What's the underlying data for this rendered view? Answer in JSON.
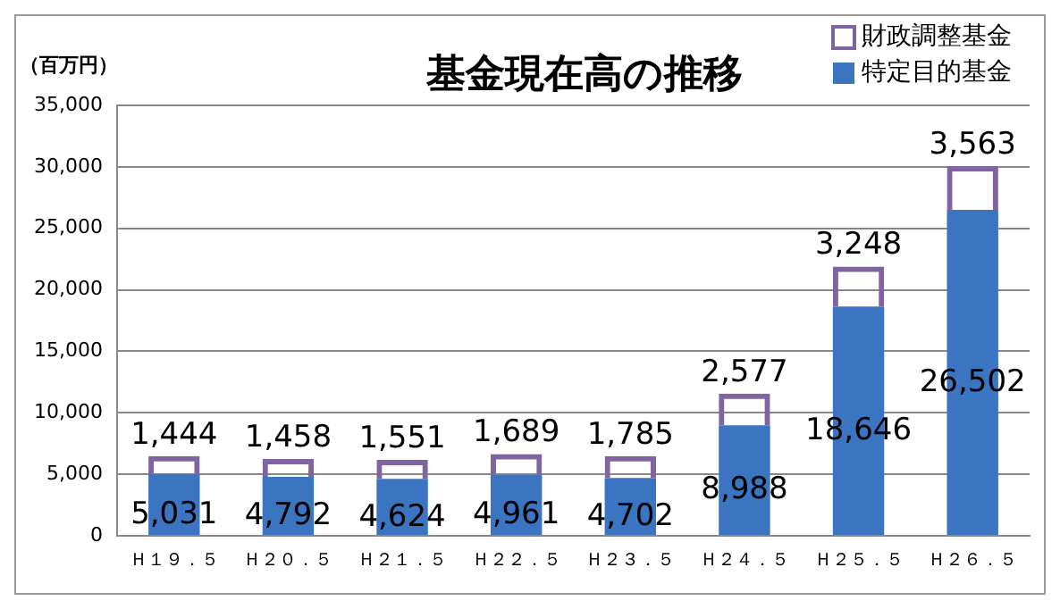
{
  "chart_data": {
    "type": "bar",
    "title": "基金現在高の推移",
    "ylabel": "（百万円）",
    "categories": [
      "Ｈ１９．５",
      "Ｈ２０．５",
      "Ｈ２１．５",
      "Ｈ２２．５",
      "Ｈ２３．５",
      "Ｈ２４．５",
      "Ｈ２５．５",
      "Ｈ２６．５"
    ],
    "series": [
      {
        "name": "特定目的基金",
        "color": "#3b74c0",
        "values": [
          5031,
          4792,
          4624,
          4961,
          4702,
          8988,
          18646,
          26502
        ],
        "value_labels": [
          "5,031",
          "4,792",
          "4,624",
          "4,961",
          "4,702",
          "8,988",
          "18,646",
          "26,502"
        ]
      },
      {
        "name": "財政調整基金",
        "color": "#8064a2",
        "values": [
          1444,
          1458,
          1551,
          1689,
          1785,
          2577,
          3248,
          3563
        ],
        "value_labels": [
          "1,444",
          "1,458",
          "1,551",
          "1,689",
          "1,785",
          "2,577",
          "3,248",
          "3,563"
        ]
      }
    ],
    "stacked": true,
    "legend": "top right",
    "grid": "y",
    "ylim": [
      0,
      35000
    ],
    "yticks": [
      0,
      {
        "value": 5000,
        "label": "5,000"
      },
      {
        "value": 10000,
        "label": "10,000"
      },
      {
        "value": 15000,
        "label": "15,000"
      },
      {
        "value": 20000,
        "label": "20,000"
      },
      {
        "value": 25000,
        "label": "25,000"
      },
      {
        "value": 30000,
        "label": "30,000"
      },
      {
        "value": 35000,
        "label": "35,000"
      }
    ]
  }
}
